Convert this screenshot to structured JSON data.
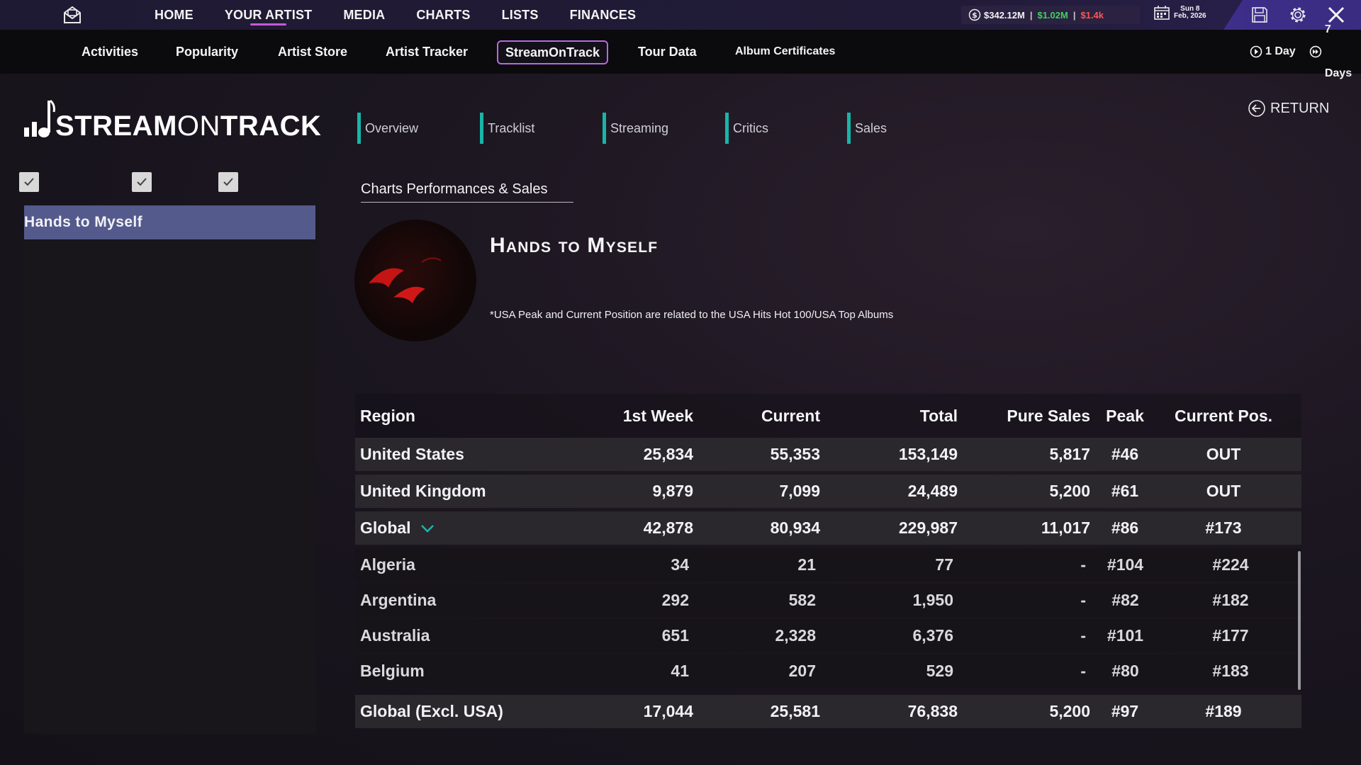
{
  "topnav": {
    "items": [
      {
        "label": "HOME"
      },
      {
        "label": "YOUR ARTIST",
        "active": true
      },
      {
        "label": "MEDIA"
      },
      {
        "label": "CHARTS"
      },
      {
        "label": "LISTS"
      },
      {
        "label": "FINANCES"
      }
    ]
  },
  "money": {
    "cash": "$342.12M",
    "income": "$1.02M",
    "expense": "$1.4k"
  },
  "date": {
    "day": "Sun 8",
    "month_year": "Feb, 2026"
  },
  "subnav": {
    "items": [
      "Activities",
      "Popularity",
      "Artist Store",
      "Artist Tracker",
      "StreamOnTrack",
      "Tour Data",
      "Album Certificates"
    ],
    "active": "StreamOnTrack",
    "time_1": "1 Day",
    "time_2": "7 Days"
  },
  "logo": {
    "part1": "STREAM",
    "part2": "ON",
    "part3": "TRACK"
  },
  "sidebar": {
    "selected_song": "Hands to Myself"
  },
  "tabs": [
    "Overview",
    "Tracklist",
    "Streaming",
    "Critics",
    "Sales"
  ],
  "return_label": "RETURN",
  "section_title": "Charts Performances & Sales",
  "song": {
    "title": "Hands to Myself",
    "note": "*USA Peak and Current Position are related to the USA Hits Hot 100/USA Top Albums"
  },
  "table": {
    "headers": [
      "Region",
      "1st Week",
      "Current",
      "Total",
      "Pure Sales",
      "Peak",
      "Current Pos."
    ],
    "main_rows": [
      {
        "region": "United States",
        "first_week": "25,834",
        "current": "55,353",
        "total": "153,149",
        "pure_sales": "5,817",
        "peak": "#46",
        "current_pos": "OUT"
      },
      {
        "region": "United Kingdom",
        "first_week": "9,879",
        "current": "7,099",
        "total": "24,489",
        "pure_sales": "5,200",
        "peak": "#61",
        "current_pos": "OUT"
      },
      {
        "region": "Global",
        "first_week": "42,878",
        "current": "80,934",
        "total": "229,987",
        "pure_sales": "11,017",
        "peak": "#86",
        "current_pos": "#173"
      }
    ],
    "sub_rows": [
      {
        "region": "Algeria",
        "first_week": "34",
        "current": "21",
        "total": "77",
        "pure_sales": "-",
        "peak": "#104",
        "current_pos": "#224"
      },
      {
        "region": "Argentina",
        "first_week": "292",
        "current": "582",
        "total": "1,950",
        "pure_sales": "-",
        "peak": "#82",
        "current_pos": "#182"
      },
      {
        "region": "Australia",
        "first_week": "651",
        "current": "2,328",
        "total": "6,376",
        "pure_sales": "-",
        "peak": "#101",
        "current_pos": "#177"
      },
      {
        "region": "Belgium",
        "first_week": "41",
        "current": "207",
        "total": "529",
        "pure_sales": "-",
        "peak": "#80",
        "current_pos": "#183"
      }
    ],
    "footer": {
      "region": "Global (Excl. USA)",
      "first_week": "17,044",
      "current": "25,581",
      "total": "76,838",
      "pure_sales": "5,200",
      "peak": "#97",
      "current_pos": "#189"
    }
  },
  "colors": {
    "accent_tab": "#18b5a8",
    "active_border": "#b46be0",
    "selected_item": "#545a8c",
    "income": "#3fd15f",
    "expense": "#ff5555"
  }
}
